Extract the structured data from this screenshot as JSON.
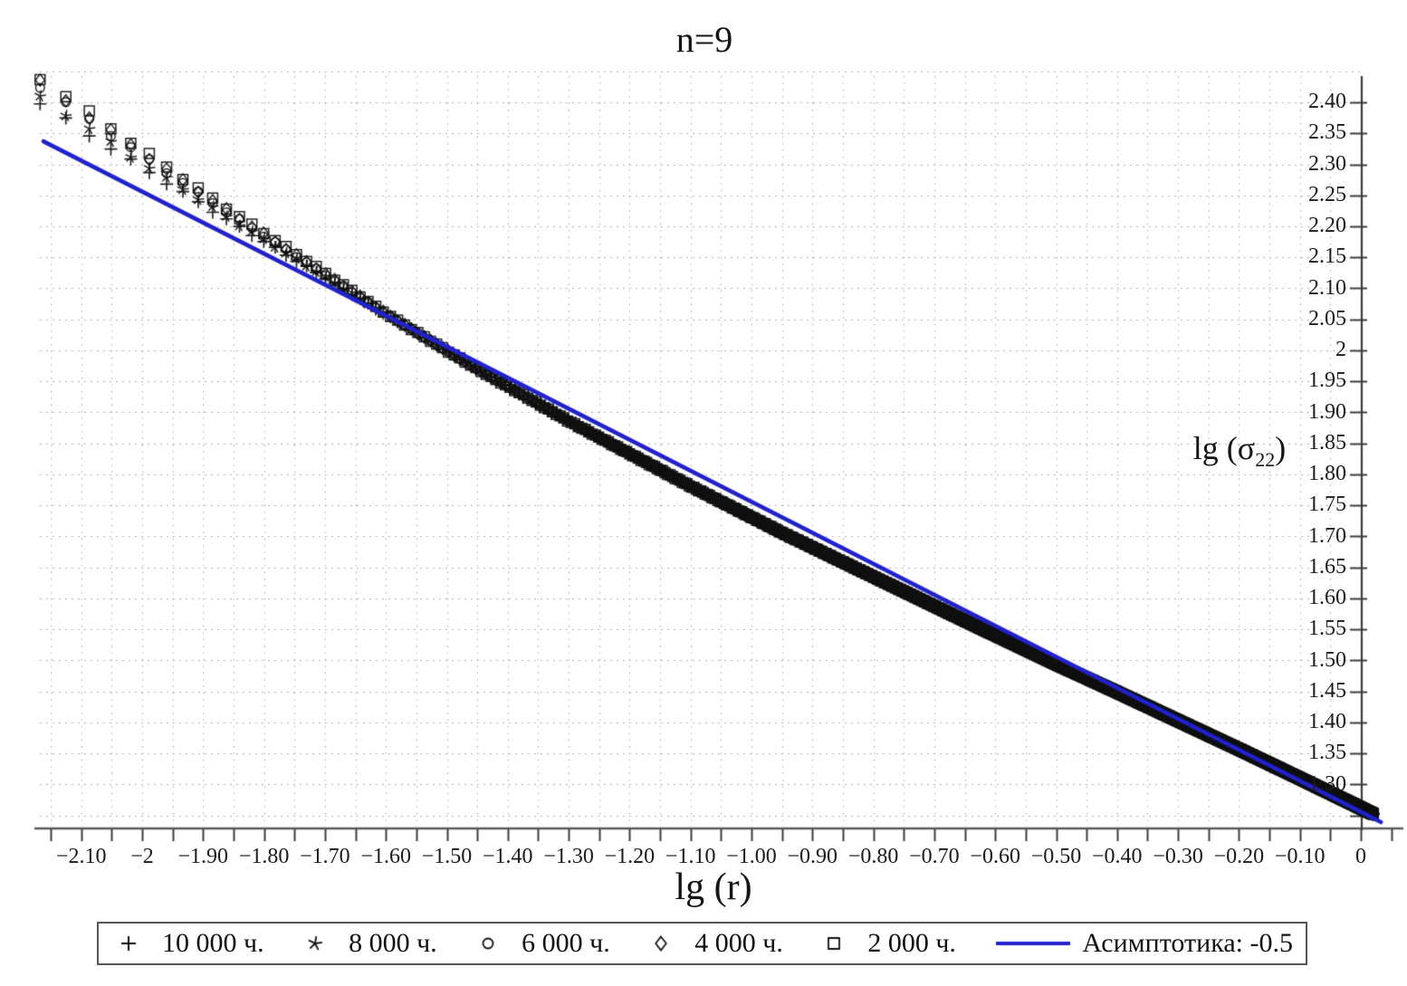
{
  "title": "n=9",
  "axes": {
    "x": {
      "label": "lg (r)",
      "tick_values": [
        -2.1,
        -2.0,
        -1.9,
        -1.8,
        -1.7,
        -1.6,
        -1.5,
        -1.4,
        -1.3,
        -1.2,
        -1.1,
        -1.0,
        -0.9,
        -0.8,
        -0.7,
        -0.6,
        -0.5,
        -0.4,
        -0.3,
        -0.2,
        -0.1,
        0
      ],
      "tick_labels": [
        "−2.10",
        "−2",
        "−1.90",
        "−1.80",
        "−1.70",
        "−1.60",
        "−1.50",
        "−1.40",
        "−1.30",
        "−1.20",
        "−1.10",
        "−1.00",
        "−0.90",
        "−0.80",
        "−0.70",
        "−0.60",
        "−0.50",
        "−0.40",
        "−0.30",
        "−0.20",
        "−0.10",
        "0"
      ],
      "minor_step": 0.05
    },
    "y": {
      "label": "lg (σ22)",
      "label_prefix": "lg (σ",
      "label_sub": "22",
      "label_suffix": ")",
      "tick_values": [
        2.4,
        2.35,
        2.3,
        2.25,
        2.2,
        2.15,
        2.1,
        2.05,
        2.0,
        1.95,
        1.9,
        1.85,
        1.8,
        1.75,
        1.7,
        1.65,
        1.6,
        1.55,
        1.5,
        1.45,
        1.4,
        1.35,
        1.3
      ],
      "tick_labels": [
        "2.40",
        "2.35",
        "2.30",
        "2.25",
        "2.20",
        "2.15",
        "2.10",
        "2.05",
        "2",
        "1.95",
        "1.90",
        "1.85",
        "1.80",
        "1.75",
        "1.70",
        "1.65",
        "1.60",
        "1.55",
        "1.50",
        "1.45",
        "1.40",
        "1.35",
        "1.30"
      ]
    }
  },
  "legend": {
    "items": [
      {
        "marker": "plus",
        "label": "10 000 ч."
      },
      {
        "marker": "star",
        "label": "8 000 ч."
      },
      {
        "marker": "circle",
        "label": "6 000 ч."
      },
      {
        "marker": "diamond",
        "label": "4 000 ч."
      },
      {
        "marker": "square",
        "label": "2 000 ч."
      },
      {
        "marker": "line",
        "label": "Асимптотика: -0.5"
      }
    ]
  },
  "colors": {
    "asymptote": "#2121cd",
    "marker": "#101010",
    "axis": "#3c3c3c",
    "x_axis_line": "#5a5a5a",
    "grid": "#a6a6a6",
    "text": "#151515",
    "background": "#ffffff"
  },
  "chart_data": {
    "type": "scatter",
    "title": "n=9",
    "xlabel": "lg (r)",
    "ylabel": "lg (σ22)",
    "xlim": [
      -2.17,
      0.05
    ],
    "ylim": [
      1.23,
      2.45
    ],
    "grid": "dotted, step 0.05 both axes",
    "legend_position": "bottom outside, boxed",
    "series": [
      {
        "name": "10 000 ч.",
        "marker": "plus",
        "offset": -0.026
      },
      {
        "name": "8 000 ч.",
        "marker": "star",
        "offset": -0.015
      },
      {
        "name": "6 000 ч.",
        "marker": "circle",
        "offset": 0.003
      },
      {
        "name": "4 000 ч.",
        "marker": "diamond",
        "offset": 0.009
      },
      {
        "name": "2 000 ч.",
        "marker": "square",
        "offset": 0.016
      }
    ],
    "offset_decay": {
      "start": -2.17,
      "end": -1.55,
      "power": 1.2
    },
    "sampling": {
      "r_start": 0.0068,
      "r_step": 0.000695,
      "n_points": 1500
    },
    "mean_curve_points": [
      [
        -2.17,
        2.425
      ],
      [
        -2.0,
        2.312
      ],
      [
        -1.85,
        2.215
      ],
      [
        -1.7,
        2.122
      ],
      [
        -1.61,
        2.065
      ],
      [
        -1.45,
        1.97
      ],
      [
        -1.3,
        1.886
      ],
      [
        -1.1,
        1.781
      ],
      [
        -0.95,
        1.706
      ],
      [
        -0.8,
        1.635
      ],
      [
        -0.65,
        1.564
      ],
      [
        -0.5,
        1.494
      ],
      [
        -0.4,
        1.449
      ],
      [
        -0.3,
        1.403
      ],
      [
        -0.2,
        1.357
      ],
      [
        -0.1,
        1.31
      ],
      [
        0.03,
        1.248
      ]
    ],
    "asymptote": {
      "label": "Асимптотика: -0.5",
      "slope": -0.5,
      "intercept": 1.256,
      "x_start": -2.162,
      "x_end": 0.033
    }
  }
}
